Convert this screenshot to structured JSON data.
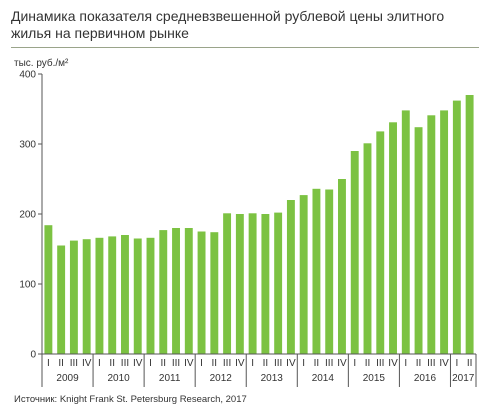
{
  "header": {
    "title": "Динамика показателя средневзвешенной рублевой цены элитного жилья на первичном рынке"
  },
  "footer": {
    "source": "Источник: Knight Frank St. Petersburg Research, 2017"
  },
  "colors": {
    "bar": "#7cc242",
    "axis": "#555555",
    "text": "#333333",
    "rule": "#9aa48a"
  },
  "chart_data": {
    "type": "bar",
    "title": "Динамика показателя средневзвешенной рублевой цены элитного жилья на первичном рынке",
    "ylabel": "тыс. руб./м²",
    "xlabel": "",
    "ylim": [
      0,
      400
    ],
    "yticks": [
      0,
      100,
      200,
      300,
      400
    ],
    "grid": false,
    "legend": "none",
    "categories": [
      "I",
      "II",
      "III",
      "IV",
      "I",
      "II",
      "III",
      "IV",
      "I",
      "II",
      "III",
      "IV",
      "I",
      "II",
      "III",
      "IV",
      "I",
      "II",
      "III",
      "IV",
      "I",
      "II",
      "III",
      "IV",
      "I",
      "II",
      "III",
      "IV",
      "I",
      "II",
      "III",
      "IV",
      "I",
      "II"
    ],
    "years": [
      {
        "label": "2009",
        "quarters": 4
      },
      {
        "label": "2010",
        "quarters": 4
      },
      {
        "label": "2011",
        "quarters": 4
      },
      {
        "label": "2012",
        "quarters": 4
      },
      {
        "label": "2013",
        "quarters": 4
      },
      {
        "label": "2014",
        "quarters": 4
      },
      {
        "label": "2015",
        "quarters": 4
      },
      {
        "label": "2016",
        "quarters": 4
      },
      {
        "label": "2017",
        "quarters": 2
      }
    ],
    "values": [
      184,
      155,
      162,
      164,
      166,
      168,
      170,
      165,
      166,
      177,
      180,
      180,
      175,
      174,
      201,
      200,
      201,
      200,
      202,
      220,
      227,
      236,
      235,
      250,
      290,
      301,
      318,
      331,
      348,
      324,
      341,
      348,
      362,
      370
    ]
  }
}
